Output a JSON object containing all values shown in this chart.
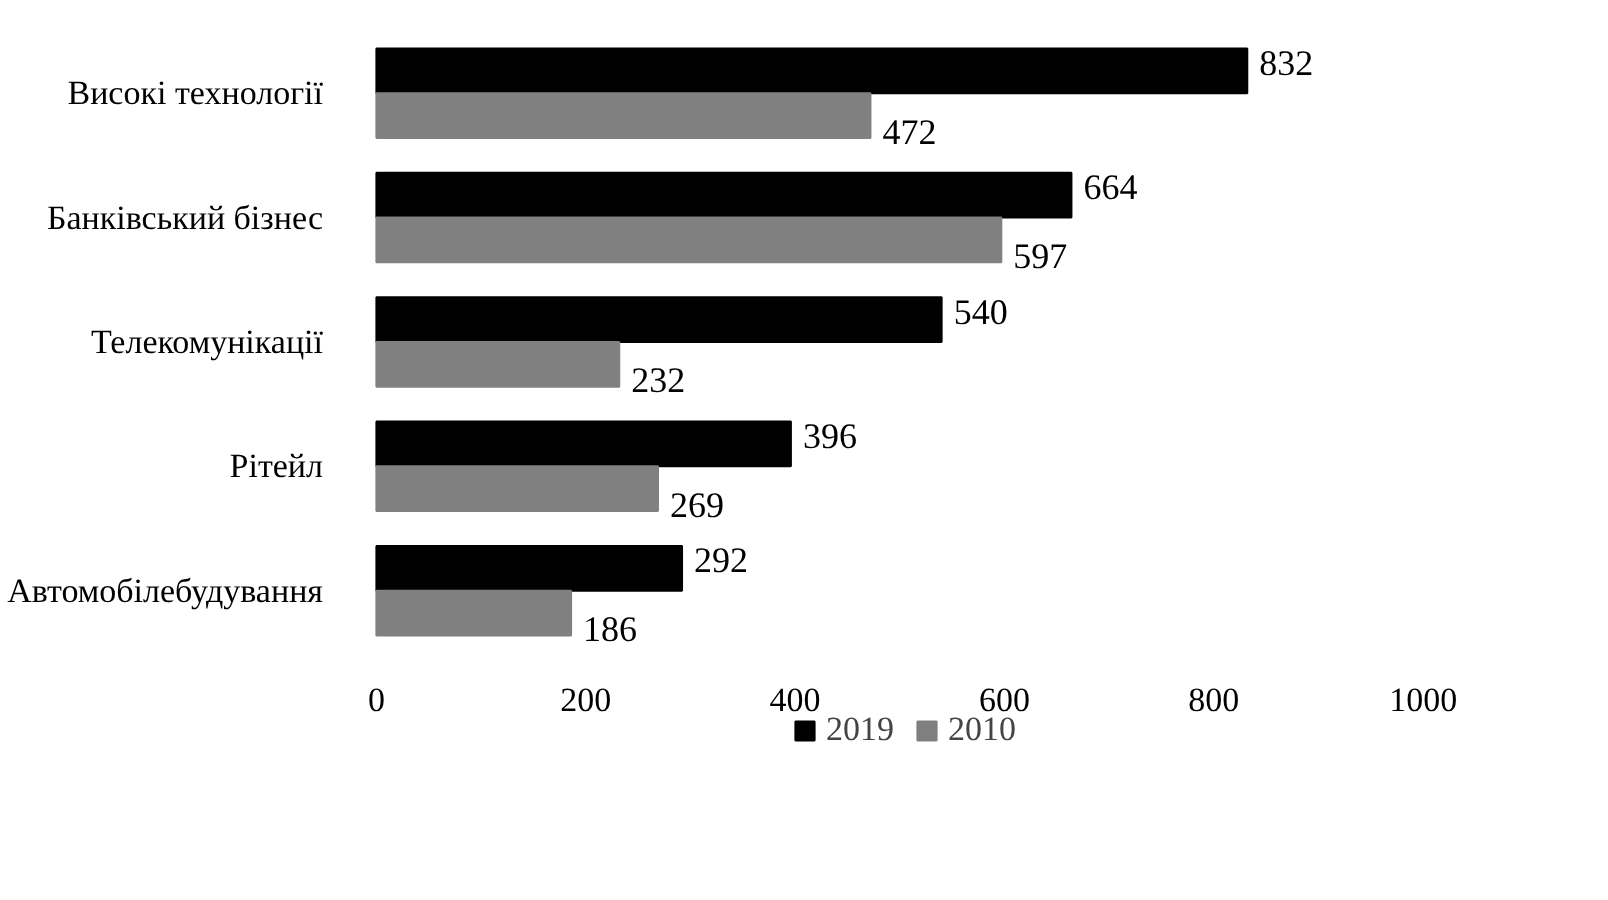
{
  "chart_data": {
    "type": "bar",
    "orientation": "horizontal",
    "categories": [
      "Високі технології",
      "Банківський бізнес",
      "Телекомунікації",
      "Рітейл",
      "Автомобілебудування"
    ],
    "series": [
      {
        "name": "2019",
        "color": "#000000",
        "values": [
          832,
          664,
          540,
          396,
          292
        ]
      },
      {
        "name": "2010",
        "color": "#808080",
        "values": [
          472,
          597,
          232,
          269,
          186
        ]
      }
    ],
    "xlim": [
      0,
      1000
    ],
    "xticks": [
      0,
      200,
      400,
      600,
      800,
      1000
    ],
    "data_labels": true,
    "legend": "bottom",
    "grid": false
  }
}
